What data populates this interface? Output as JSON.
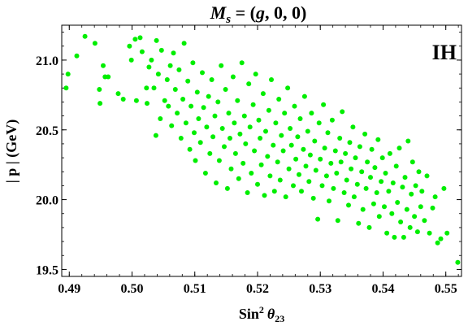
{
  "chart_data": {
    "type": "scatter",
    "title": "M_s = (g, 0, 0)",
    "title_parts": {
      "sym": "M",
      "sub": "s",
      "rest": " = (",
      "g": "g",
      "tail": ", 0, 0)"
    },
    "xlabel": "Sin² θ₂₃",
    "xlabel_parts": {
      "main": "Sin",
      "sup": "2",
      "theta": "θ",
      "sub": "23"
    },
    "ylabel": "| p | (GeV)",
    "annotation": "IH",
    "xlim": [
      0.4888,
      0.5525
    ],
    "ylim": [
      19.45,
      21.25
    ],
    "x_ticks": [
      0.49,
      0.5,
      0.51,
      0.52,
      0.53,
      0.54,
      0.55
    ],
    "x_tick_labels": [
      "0.49",
      "0.50",
      "0.51",
      "0.52",
      "0.53",
      "0.54",
      "0.55"
    ],
    "y_ticks": [
      19.5,
      20.0,
      20.5,
      21.0
    ],
    "y_tick_labels": [
      "19.5",
      "20.0",
      "20.5",
      "21.0"
    ],
    "grid": false,
    "series": [
      {
        "color": "#00ee00",
        "points": [
          [
            0.4895,
            20.8
          ],
          [
            0.4898,
            20.9
          ],
          [
            0.4912,
            21.03
          ],
          [
            0.4925,
            21.17
          ],
          [
            0.4941,
            21.12
          ],
          [
            0.4948,
            20.79
          ],
          [
            0.4949,
            20.69
          ],
          [
            0.4954,
            20.96
          ],
          [
            0.4957,
            20.88
          ],
          [
            0.4962,
            20.88
          ],
          [
            0.4978,
            20.76
          ],
          [
            0.4986,
            20.72
          ],
          [
            0.4996,
            21.1
          ],
          [
            0.4999,
            21.0
          ],
          [
            0.5005,
            21.15
          ],
          [
            0.5007,
            20.71
          ],
          [
            0.5013,
            21.16
          ],
          [
            0.5016,
            21.06
          ],
          [
            0.5023,
            20.8
          ],
          [
            0.5024,
            20.69
          ],
          [
            0.5027,
            20.95
          ],
          [
            0.5031,
            21.0
          ],
          [
            0.5035,
            20.8
          ],
          [
            0.5038,
            20.46
          ],
          [
            0.5039,
            21.14
          ],
          [
            0.5042,
            20.9
          ],
          [
            0.5045,
            20.58
          ],
          [
            0.5047,
            21.07
          ],
          [
            0.5052,
            20.71
          ],
          [
            0.5056,
            20.86
          ],
          [
            0.5058,
            20.67
          ],
          [
            0.5061,
            20.96
          ],
          [
            0.5063,
            20.53
          ],
          [
            0.5066,
            21.05
          ],
          [
            0.5069,
            20.79
          ],
          [
            0.5072,
            20.62
          ],
          [
            0.5075,
            20.93
          ],
          [
            0.5078,
            20.44
          ],
          [
            0.5081,
            20.72
          ],
          [
            0.5083,
            21.12
          ],
          [
            0.5086,
            20.55
          ],
          [
            0.5089,
            20.85
          ],
          [
            0.5092,
            20.36
          ],
          [
            0.5094,
            20.67
          ],
          [
            0.5097,
            20.98
          ],
          [
            0.5099,
            20.48
          ],
          [
            0.5101,
            20.28
          ],
          [
            0.5104,
            20.77
          ],
          [
            0.5106,
            20.58
          ],
          [
            0.5109,
            20.41
          ],
          [
            0.5112,
            20.91
          ],
          [
            0.5114,
            20.66
          ],
          [
            0.5117,
            20.19
          ],
          [
            0.5119,
            20.52
          ],
          [
            0.5122,
            20.74
          ],
          [
            0.5124,
            20.33
          ],
          [
            0.5127,
            20.86
          ],
          [
            0.5129,
            20.45
          ],
          [
            0.5132,
            20.6
          ],
          [
            0.5134,
            20.12
          ],
          [
            0.5137,
            20.7
          ],
          [
            0.5139,
            20.28
          ],
          [
            0.5142,
            20.96
          ],
          [
            0.5144,
            20.51
          ],
          [
            0.5147,
            20.38
          ],
          [
            0.5149,
            20.79
          ],
          [
            0.5152,
            20.08
          ],
          [
            0.5154,
            20.62
          ],
          [
            0.5156,
            20.44
          ],
          [
            0.5158,
            20.22
          ],
          [
            0.5161,
            20.88
          ],
          [
            0.5163,
            20.55
          ],
          [
            0.5165,
            20.33
          ],
          [
            0.5168,
            20.71
          ],
          [
            0.517,
            20.15
          ],
          [
            0.5172,
            20.47
          ],
          [
            0.5175,
            20.98
          ],
          [
            0.5177,
            20.26
          ],
          [
            0.5179,
            20.6
          ],
          [
            0.5181,
            20.4
          ],
          [
            0.5184,
            20.05
          ],
          [
            0.5186,
            20.83
          ],
          [
            0.5188,
            20.52
          ],
          [
            0.519,
            20.19
          ],
          [
            0.5193,
            20.68
          ],
          [
            0.5195,
            20.35
          ],
          [
            0.5197,
            20.9
          ],
          [
            0.52,
            20.11
          ],
          [
            0.5202,
            20.57
          ],
          [
            0.5204,
            20.44
          ],
          [
            0.5206,
            20.25
          ],
          [
            0.5209,
            20.76
          ],
          [
            0.5211,
            20.03
          ],
          [
            0.5213,
            20.49
          ],
          [
            0.5216,
            20.31
          ],
          [
            0.5218,
            20.64
          ],
          [
            0.522,
            20.17
          ],
          [
            0.5222,
            20.86
          ],
          [
            0.5225,
            20.39
          ],
          [
            0.5227,
            20.06
          ],
          [
            0.5229,
            20.55
          ],
          [
            0.5232,
            20.27
          ],
          [
            0.5234,
            20.72
          ],
          [
            0.5236,
            20.14
          ],
          [
            0.5238,
            20.46
          ],
          [
            0.5241,
            20.35
          ],
          [
            0.5243,
            20.62
          ],
          [
            0.5245,
            20.02
          ],
          [
            0.5248,
            20.8
          ],
          [
            0.525,
            20.22
          ],
          [
            0.5252,
            20.51
          ],
          [
            0.5254,
            20.39
          ],
          [
            0.5257,
            20.1
          ],
          [
            0.5259,
            20.67
          ],
          [
            0.5261,
            20.29
          ],
          [
            0.5264,
            20.45
          ],
          [
            0.5266,
            20.18
          ],
          [
            0.5268,
            20.58
          ],
          [
            0.527,
            20.06
          ],
          [
            0.5273,
            20.36
          ],
          [
            0.5275,
            20.74
          ],
          [
            0.5277,
            20.24
          ],
          [
            0.528,
            20.49
          ],
          [
            0.5282,
            20.13
          ],
          [
            0.5284,
            20.32
          ],
          [
            0.5286,
            20.62
          ],
          [
            0.5289,
            20.01
          ],
          [
            0.5291,
            20.42
          ],
          [
            0.5293,
            20.21
          ],
          [
            0.5296,
            19.86
          ],
          [
            0.5298,
            20.55
          ],
          [
            0.53,
            20.29
          ],
          [
            0.5303,
            20.1
          ],
          [
            0.5305,
            20.68
          ],
          [
            0.5307,
            20.37
          ],
          [
            0.531,
            20.17
          ],
          [
            0.5312,
            20.48
          ],
          [
            0.5314,
            19.99
          ],
          [
            0.5317,
            20.26
          ],
          [
            0.5319,
            20.57
          ],
          [
            0.5321,
            20.08
          ],
          [
            0.5324,
            20.35
          ],
          [
            0.5326,
            20.19
          ],
          [
            0.5328,
            19.85
          ],
          [
            0.5331,
            20.44
          ],
          [
            0.5333,
            20.27
          ],
          [
            0.5335,
            20.63
          ],
          [
            0.5338,
            20.05
          ],
          [
            0.534,
            20.33
          ],
          [
            0.5342,
            20.14
          ],
          [
            0.5345,
            19.96
          ],
          [
            0.5347,
            20.41
          ],
          [
            0.5349,
            20.22
          ],
          [
            0.5352,
            20.52
          ],
          [
            0.5354,
            20.02
          ],
          [
            0.5356,
            20.3
          ],
          [
            0.5359,
            20.11
          ],
          [
            0.5361,
            19.83
          ],
          [
            0.5363,
            20.38
          ],
          [
            0.5366,
            20.2
          ],
          [
            0.5368,
            19.93
          ],
          [
            0.5371,
            20.47
          ],
          [
            0.5373,
            20.08
          ],
          [
            0.5375,
            20.27
          ],
          [
            0.5378,
            19.8
          ],
          [
            0.538,
            20.16
          ],
          [
            0.5382,
            20.36
          ],
          [
            0.5385,
            19.97
          ],
          [
            0.5387,
            20.23
          ],
          [
            0.539,
            20.05
          ],
          [
            0.5392,
            20.43
          ],
          [
            0.5394,
            19.88
          ],
          [
            0.5397,
            20.13
          ],
          [
            0.5399,
            20.3
          ],
          [
            0.5402,
            19.95
          ],
          [
            0.5404,
            20.19
          ],
          [
            0.5406,
            19.76
          ],
          [
            0.5409,
            20.06
          ],
          [
            0.5411,
            20.33
          ],
          [
            0.5414,
            19.9
          ],
          [
            0.5416,
            20.12
          ],
          [
            0.5418,
            19.73
          ],
          [
            0.5421,
            20.24
          ],
          [
            0.5423,
            19.98
          ],
          [
            0.5426,
            20.37
          ],
          [
            0.5428,
            19.84
          ],
          [
            0.5431,
            20.09
          ],
          [
            0.5433,
            19.73
          ],
          [
            0.5435,
            20.16
          ],
          [
            0.5438,
            19.93
          ],
          [
            0.544,
            20.42
          ],
          [
            0.5443,
            19.8
          ],
          [
            0.5445,
            20.04
          ],
          [
            0.5447,
            20.27
          ],
          [
            0.545,
            19.88
          ],
          [
            0.5452,
            20.1
          ],
          [
            0.5455,
            19.77
          ],
          [
            0.5457,
            20.2
          ],
          [
            0.546,
            19.95
          ],
          [
            0.5462,
            20.06
          ],
          [
            0.5466,
            19.85
          ],
          [
            0.547,
            20.17
          ],
          [
            0.5474,
            19.76
          ],
          [
            0.5479,
            19.94
          ],
          [
            0.5483,
            20.02
          ],
          [
            0.5487,
            19.69
          ],
          [
            0.5492,
            19.72
          ],
          [
            0.5497,
            20.08
          ],
          [
            0.5502,
            19.76
          ],
          [
            0.5519,
            19.55
          ]
        ]
      }
    ]
  }
}
